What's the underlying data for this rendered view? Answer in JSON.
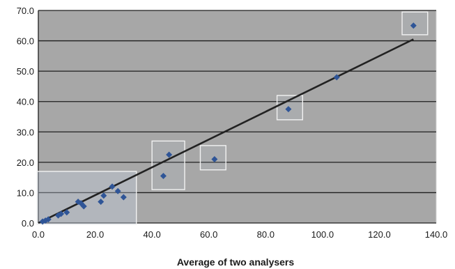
{
  "chart_data": {
    "type": "scatter",
    "title": "",
    "xlabel": "Average of two analysers",
    "ylabel": "",
    "xlim": [
      0,
      140
    ],
    "ylim": [
      0,
      70
    ],
    "x_ticks": [
      0,
      20,
      40,
      60,
      80,
      100,
      120,
      140
    ],
    "y_ticks": [
      0,
      10,
      20,
      30,
      40,
      50,
      60,
      70
    ],
    "x_tick_labels": [
      "0.0",
      "20.0",
      "40.0",
      "60.0",
      "80.0",
      "100.0",
      "120.0",
      "140.0"
    ],
    "y_tick_labels": [
      "0.0",
      "10.0",
      "20.0",
      "30.0",
      "40.0",
      "50.0",
      "60.0",
      "70.0"
    ],
    "grid": "horizontal",
    "legend": "none",
    "series": [
      {
        "marker": "diamond",
        "color": "#2f5597",
        "points": [
          [
            1.5,
            0.5
          ],
          [
            2.5,
            0.8
          ],
          [
            3.5,
            1.2
          ],
          [
            7.0,
            2.5
          ],
          [
            8.0,
            3.0
          ],
          [
            10.0,
            3.5
          ],
          [
            14.0,
            7.0
          ],
          [
            15.0,
            6.5
          ],
          [
            16.0,
            5.5
          ],
          [
            22.0,
            7.0
          ],
          [
            23.0,
            9.0
          ],
          [
            26.0,
            12.0
          ],
          [
            28.0,
            10.5
          ],
          [
            30.0,
            8.5
          ],
          [
            44.0,
            15.5
          ],
          [
            46.0,
            22.5
          ],
          [
            62.0,
            21.0
          ],
          [
            88.0,
            37.5
          ],
          [
            105.0,
            48.0
          ],
          [
            132.0,
            65.0
          ]
        ]
      }
    ],
    "trendline": {
      "color": "#222222",
      "points": [
        [
          0,
          0
        ],
        [
          132,
          60.5
        ]
      ]
    },
    "colors": {
      "plot_background": "#a7a7a7",
      "gridline": "#1e1e1e",
      "highlight_box": "#f2f2f2"
    },
    "highlight_boxes": [
      {
        "x": [
          -0.5,
          34.5
        ],
        "y": [
          -0.5,
          17.0
        ]
      },
      {
        "x": [
          40.0,
          51.5
        ],
        "y": [
          11.0,
          27.0
        ]
      },
      {
        "x": [
          57.0,
          66.0
        ],
        "y": [
          17.5,
          25.5
        ]
      },
      {
        "x": [
          84.0,
          93.0
        ],
        "y": [
          34.0,
          42.0
        ]
      },
      {
        "x": [
          128.0,
          137.0
        ],
        "y": [
          62.0,
          69.5
        ]
      }
    ]
  }
}
